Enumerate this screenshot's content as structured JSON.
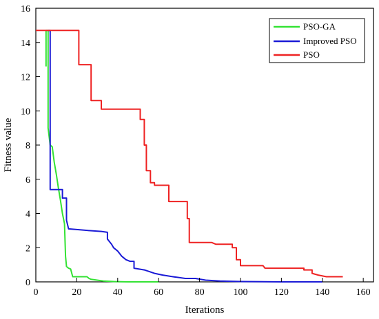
{
  "chart_data": {
    "type": "line",
    "xlabel": "Iterations",
    "ylabel": "Fitness value",
    "xlim": [
      0,
      165
    ],
    "ylim": [
      0,
      16
    ],
    "x_ticks": [
      0,
      20,
      40,
      60,
      80,
      100,
      120,
      140,
      160
    ],
    "y_ticks": [
      0,
      2,
      4,
      6,
      8,
      10,
      12,
      14,
      16
    ],
    "grid": false,
    "legend_position": "top-right",
    "series": [
      {
        "name": "PSO-GA",
        "color": "#33e233",
        "points": [
          [
            5,
            12.6
          ],
          [
            5,
            14.7
          ],
          [
            6,
            14.7
          ],
          [
            6,
            9.0
          ],
          [
            7,
            8.0
          ],
          [
            8,
            7.9
          ],
          [
            9,
            7.0
          ],
          [
            10,
            6.3
          ],
          [
            11,
            5.5
          ],
          [
            12,
            4.8
          ],
          [
            13,
            4.0
          ],
          [
            14,
            3.4
          ],
          [
            14.5,
            1.5
          ],
          [
            15,
            0.9
          ],
          [
            16,
            0.8
          ],
          [
            17,
            0.75
          ],
          [
            18,
            0.3
          ],
          [
            25,
            0.3
          ],
          [
            26,
            0.2
          ],
          [
            27,
            0.15
          ],
          [
            30,
            0.1
          ],
          [
            33,
            0.05
          ],
          [
            38,
            0.02
          ],
          [
            45,
            0.0
          ],
          [
            60,
            0.0
          ]
        ]
      },
      {
        "name": "Improved PSO",
        "color": "#1a1ad6",
        "points": [
          [
            6,
            14.7
          ],
          [
            7,
            14.7
          ],
          [
            7,
            5.4
          ],
          [
            13,
            5.4
          ],
          [
            13,
            4.9
          ],
          [
            15,
            4.9
          ],
          [
            15,
            3.6
          ],
          [
            16,
            3.1
          ],
          [
            26,
            3.0
          ],
          [
            32,
            2.95
          ],
          [
            35,
            2.9
          ],
          [
            35,
            2.5
          ],
          [
            37,
            2.2
          ],
          [
            38,
            2.0
          ],
          [
            40,
            1.8
          ],
          [
            42,
            1.5
          ],
          [
            44,
            1.3
          ],
          [
            46,
            1.2
          ],
          [
            48,
            1.2
          ],
          [
            48,
            0.8
          ],
          [
            53,
            0.7
          ],
          [
            58,
            0.5
          ],
          [
            62,
            0.4
          ],
          [
            67,
            0.3
          ],
          [
            73,
            0.2
          ],
          [
            78,
            0.2
          ],
          [
            83,
            0.1
          ],
          [
            90,
            0.05
          ],
          [
            100,
            0.02
          ],
          [
            120,
            0.0
          ],
          [
            140,
            0.0
          ]
        ]
      },
      {
        "name": "PSO",
        "color": "#ee2222",
        "points": [
          [
            0,
            14.7
          ],
          [
            21,
            14.7
          ],
          [
            21,
            12.7
          ],
          [
            27,
            12.7
          ],
          [
            27,
            10.6
          ],
          [
            32,
            10.6
          ],
          [
            32,
            10.1
          ],
          [
            51,
            10.1
          ],
          [
            51,
            9.5
          ],
          [
            53,
            9.5
          ],
          [
            53,
            8.0
          ],
          [
            54,
            8.0
          ],
          [
            54,
            6.5
          ],
          [
            56,
            6.5
          ],
          [
            56,
            5.8
          ],
          [
            58,
            5.8
          ],
          [
            58,
            5.65
          ],
          [
            65,
            5.65
          ],
          [
            65,
            4.7
          ],
          [
            74,
            4.7
          ],
          [
            74,
            3.7
          ],
          [
            75,
            3.7
          ],
          [
            75,
            2.3
          ],
          [
            86,
            2.3
          ],
          [
            88,
            2.2
          ],
          [
            96,
            2.2
          ],
          [
            96,
            2.0
          ],
          [
            98,
            2.0
          ],
          [
            98,
            1.3
          ],
          [
            100,
            1.3
          ],
          [
            100,
            0.95
          ],
          [
            111,
            0.95
          ],
          [
            112,
            0.8
          ],
          [
            131,
            0.8
          ],
          [
            131,
            0.7
          ],
          [
            135,
            0.7
          ],
          [
            135,
            0.5
          ],
          [
            138,
            0.4
          ],
          [
            142,
            0.3
          ],
          [
            150,
            0.3
          ]
        ]
      }
    ]
  }
}
